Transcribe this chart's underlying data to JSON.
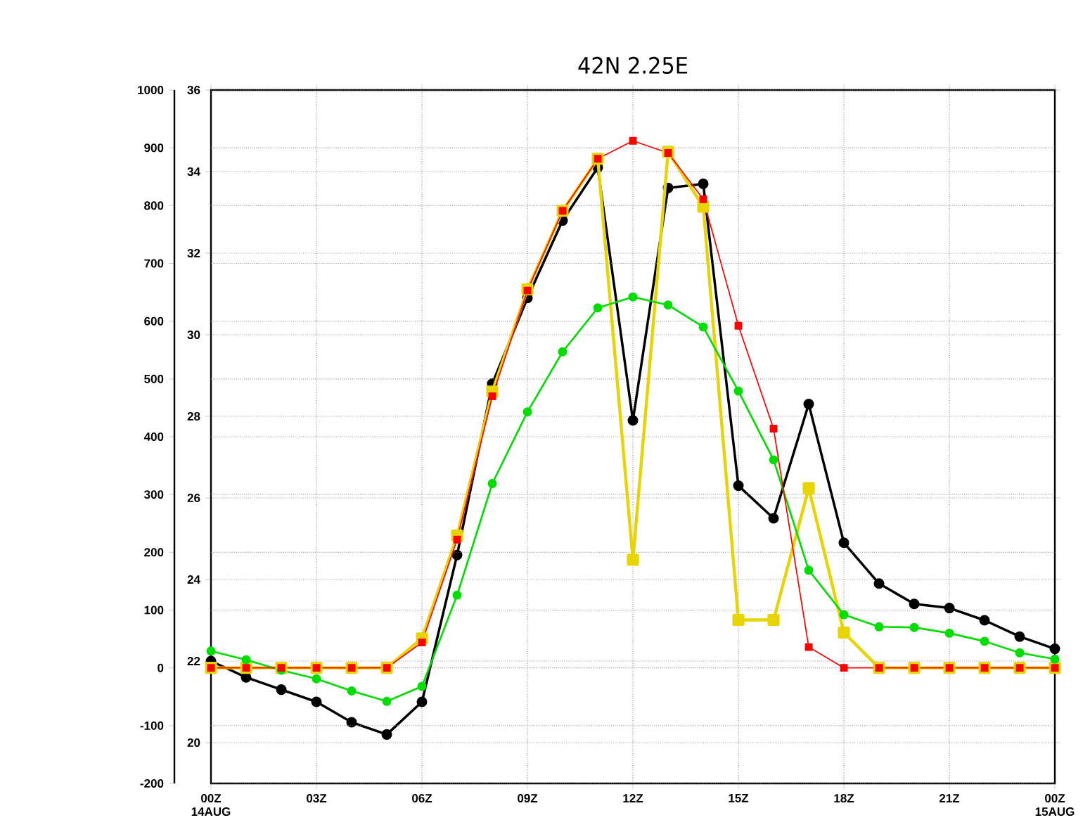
{
  "chart_data": {
    "type": "line",
    "title": "42N 2.25E",
    "x": [
      0,
      1,
      2,
      3,
      4,
      5,
      6,
      7,
      8,
      9,
      10,
      11,
      12,
      13,
      14,
      15,
      16,
      17,
      18,
      19,
      20,
      21,
      22,
      23,
      24
    ],
    "xlim": [
      0,
      24
    ],
    "xticks": [
      {
        "value": 0,
        "label": "00Z 14AUG"
      },
      {
        "value": 3,
        "label": "03Z"
      },
      {
        "value": 6,
        "label": "06Z"
      },
      {
        "value": 9,
        "label": "09Z"
      },
      {
        "value": 12,
        "label": "12Z"
      },
      {
        "value": 15,
        "label": "15Z"
      },
      {
        "value": 18,
        "label": "18Z"
      },
      {
        "value": 21,
        "label": "21Z"
      },
      {
        "value": 24,
        "label": "00Z 15AUG"
      }
    ],
    "ylim": [
      -200,
      1000
    ],
    "yticks": [
      -200,
      -100,
      0,
      100,
      200,
      300,
      400,
      500,
      600,
      700,
      800,
      900,
      1000
    ],
    "y2lim": [
      19,
      36
    ],
    "y2ticks": [
      20,
      22,
      24,
      26,
      28,
      30,
      32,
      34,
      36
    ],
    "grid": true,
    "line_style": "solid",
    "series": [
      {
        "color": "#e8d400",
        "marker": "square",
        "values": [
          0,
          0,
          0,
          0,
          0,
          0,
          51,
          229,
          478,
          655,
          791,
          881,
          187,
          893,
          798,
          83,
          83,
          311,
          61,
          0,
          0,
          0,
          0,
          0,
          0
        ]
      },
      {
        "color": "#000000",
        "marker": "circle",
        "axis": "y2",
        "values": [
          22.0,
          21.6,
          21.3,
          21.0,
          20.5,
          20.2,
          21.0,
          24.6,
          28.8,
          30.9,
          32.8,
          34.1,
          27.9,
          33.6,
          33.7,
          26.3,
          25.5,
          28.3,
          24.9,
          23.9,
          23.4,
          23.3,
          23.0,
          22.6,
          22.3
        ]
      },
      {
        "color": "#00dd00",
        "marker": "circle",
        "values": [
          29,
          14,
          -4,
          -19,
          -40,
          -58,
          -32,
          126,
          319,
          443,
          547,
          623,
          642,
          628,
          590,
          479,
          360,
          169,
          92,
          71,
          70,
          60,
          46,
          26,
          15
        ]
      },
      {
        "color": "#ff0000",
        "marker": "square",
        "values": [
          0,
          0,
          0,
          0,
          0,
          0,
          44,
          222,
          470,
          653,
          791,
          881,
          912,
          891,
          811,
          592,
          414,
          36,
          0,
          0,
          0,
          0,
          0,
          0,
          0
        ]
      }
    ]
  }
}
